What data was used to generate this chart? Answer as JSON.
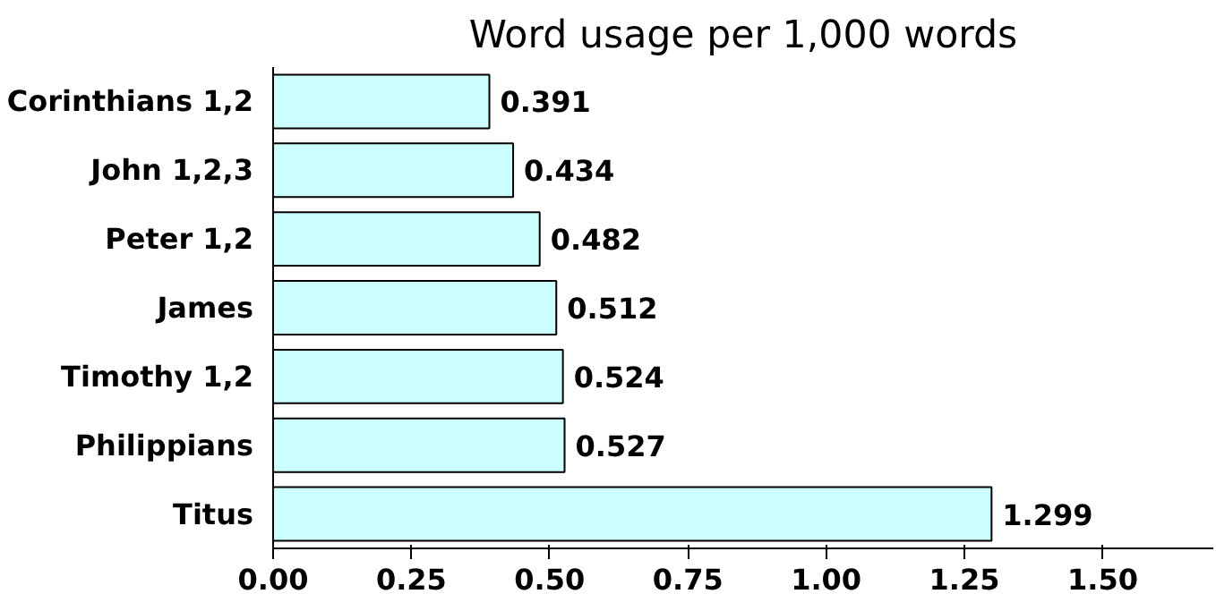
{
  "chart_data": {
    "type": "bar",
    "orientation": "horizontal",
    "title": "Word usage per 1,000 words",
    "categories": [
      "Corinthians 1,2",
      "John 1,2,3",
      "Peter 1,2",
      "James",
      "Timothy 1,2",
      "Philippians",
      "Titus"
    ],
    "values": [
      0.391,
      0.434,
      0.482,
      0.512,
      0.524,
      0.527,
      1.299
    ],
    "color": "#ccffff",
    "xlim": [
      0,
      1.7
    ],
    "xticks": [
      {
        "value": 0,
        "label": "0.00"
      },
      {
        "value": 0.25,
        "label": "0.25"
      },
      {
        "value": 0.5,
        "label": "0.50"
      },
      {
        "value": 0.75,
        "label": "0.75"
      },
      {
        "value": 1,
        "label": "1.00"
      },
      {
        "value": 1.25,
        "label": "1.25"
      },
      {
        "value": 1.5,
        "label": "1.50"
      }
    ],
    "data_labels": true,
    "grid": false
  }
}
